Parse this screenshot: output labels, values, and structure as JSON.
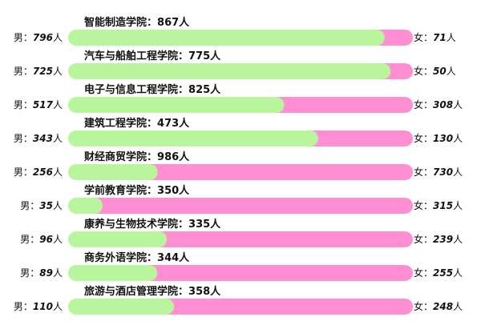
{
  "chart_data": {
    "type": "bar",
    "orientation": "horizontal",
    "stacked": "proportional",
    "categories": [
      "智能制造学院",
      "汽车与船舶工程学院",
      "电子与信息工程学院",
      "建筑工程学院",
      "财经商贸学院",
      "学前教育学院",
      "康养与生物技术学院",
      "商务外语学院",
      "旅游与酒店管理学院"
    ],
    "totals": [
      867,
      775,
      825,
      473,
      986,
      350,
      335,
      344,
      358
    ],
    "separator": "：",
    "unit": "人",
    "series": [
      {
        "name": "男",
        "color": "#b8f59c",
        "values": [
          796,
          725,
          517,
          343,
          256,
          35,
          96,
          89,
          110
        ]
      },
      {
        "name": "女",
        "color": "#ff8ed2",
        "values": [
          71,
          50,
          308,
          130,
          730,
          315,
          239,
          255,
          248
        ]
      }
    ]
  }
}
